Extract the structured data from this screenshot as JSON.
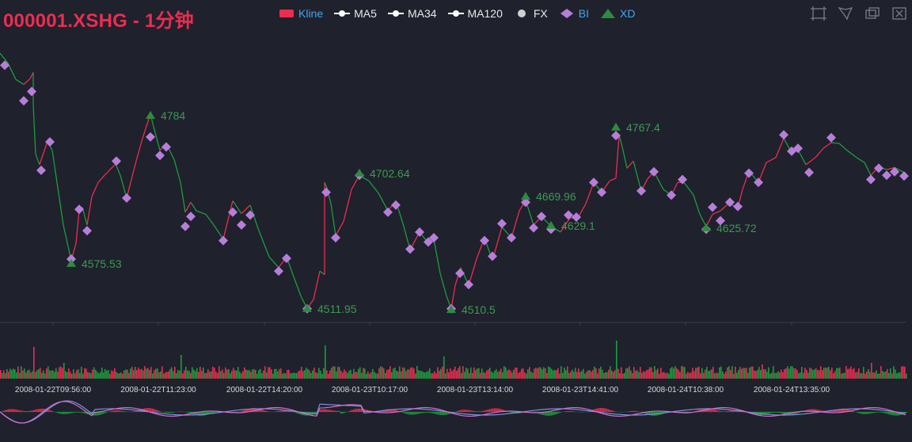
{
  "title": "000001.XSHG - 1分钟",
  "legend": [
    {
      "label": "Kline",
      "icon": "rect",
      "color": "#ec2d4f",
      "text_color": "#3ea8ef"
    },
    {
      "label": "MA5",
      "icon": "line-dot",
      "color": "#ffffff",
      "text_color": "#e8e8e8"
    },
    {
      "label": "MA34",
      "icon": "line-dot",
      "color": "#ffffff",
      "text_color": "#e8e8e8"
    },
    {
      "label": "MA120",
      "icon": "line-dot",
      "color": "#ffffff",
      "text_color": "#e8e8e8"
    },
    {
      "label": "FX",
      "icon": "circle",
      "color": "#d0d0d0",
      "text_color": "#e8e8e8"
    },
    {
      "label": "BI",
      "icon": "diamond",
      "color": "#b77ed9",
      "text_color": "#3ea8ef"
    },
    {
      "label": "XD",
      "icon": "triangle",
      "color": "#2e8b3e",
      "text_color": "#3ea8ef"
    }
  ],
  "toolbox": [
    {
      "name": "zoom-select-icon"
    },
    {
      "name": "lasso-select-icon"
    },
    {
      "name": "zoom-back-icon"
    },
    {
      "name": "clear-select-icon"
    }
  ],
  "colors": {
    "up": "#ec2d4f",
    "down": "#1f9c3c",
    "bi": "#b77ed9",
    "xd": "#2e8b3e",
    "macd_dif": "#7e8fd8",
    "macd_dea": "#d46ed0"
  },
  "chart_data": {
    "type": "line",
    "x_labels": [
      "2008-01-22T09:56:00",
      "2008-01-22T11:23:00",
      "2008-01-22T14:20:00",
      "2008-01-23T10:17:00",
      "2008-01-23T13:14:00",
      "2008-01-23T14:41:00",
      "2008-01-24T10:38:00",
      "2008-01-24T13:35:00"
    ],
    "price_range": [
      4495,
      4880
    ],
    "kline_path": [
      [
        0,
        4872
      ],
      [
        10,
        4858
      ],
      [
        20,
        4835
      ],
      [
        30,
        4828
      ],
      [
        38,
        4836
      ],
      [
        42,
        4845
      ],
      [
        42,
        4800
      ],
      [
        45,
        4730
      ],
      [
        50,
        4715
      ],
      [
        60,
        4748
      ],
      [
        66,
        4735
      ],
      [
        72,
        4690
      ],
      [
        80,
        4630
      ],
      [
        90,
        4580
      ],
      [
        96,
        4604
      ],
      [
        100,
        4650
      ],
      [
        104,
        4655
      ],
      [
        110,
        4630
      ],
      [
        116,
        4670
      ],
      [
        124,
        4690
      ],
      [
        132,
        4700
      ],
      [
        146,
        4716
      ],
      [
        152,
        4700
      ],
      [
        160,
        4668
      ],
      [
        172,
        4720
      ],
      [
        180,
        4752
      ],
      [
        190,
        4786
      ],
      [
        196,
        4760
      ],
      [
        202,
        4735
      ],
      [
        210,
        4745
      ],
      [
        220,
        4722
      ],
      [
        228,
        4690
      ],
      [
        234,
        4648
      ],
      [
        241,
        4662
      ],
      [
        248,
        4650
      ],
      [
        260,
        4645
      ],
      [
        270,
        4630
      ],
      [
        282,
        4610
      ],
      [
        294,
        4664
      ],
      [
        305,
        4646
      ],
      [
        316,
        4658
      ],
      [
        326,
        4625
      ],
      [
        340,
        4585
      ],
      [
        352,
        4570
      ],
      [
        362,
        4585
      ],
      [
        370,
        4560
      ],
      [
        380,
        4530
      ],
      [
        388,
        4512
      ],
      [
        396,
        4525
      ],
      [
        404,
        4565
      ],
      [
        410,
        4560
      ],
      [
        410,
        4690
      ],
      [
        413,
        4682
      ],
      [
        418,
        4660
      ],
      [
        424,
        4615
      ],
      [
        434,
        4635
      ],
      [
        444,
        4680
      ],
      [
        454,
        4700
      ],
      [
        466,
        4692
      ],
      [
        478,
        4675
      ],
      [
        490,
        4650
      ],
      [
        500,
        4664
      ],
      [
        510,
        4628
      ],
      [
        518,
        4595
      ],
      [
        530,
        4620
      ],
      [
        540,
        4606
      ],
      [
        548,
        4610
      ],
      [
        556,
        4562
      ],
      [
        564,
        4530
      ],
      [
        570,
        4512
      ],
      [
        575,
        4545
      ],
      [
        582,
        4570
      ],
      [
        592,
        4545
      ],
      [
        602,
        4582
      ],
      [
        612,
        4612
      ],
      [
        622,
        4580
      ],
      [
        634,
        4627
      ],
      [
        646,
        4612
      ],
      [
        656,
        4650
      ],
      [
        664,
        4665
      ],
      [
        674,
        4630
      ],
      [
        684,
        4642
      ],
      [
        696,
        4628
      ],
      [
        708,
        4620
      ],
      [
        720,
        4640
      ],
      [
        730,
        4640
      ],
      [
        740,
        4660
      ],
      [
        750,
        4690
      ],
      [
        760,
        4676
      ],
      [
        770,
        4692
      ],
      [
        778,
        4696
      ],
      [
        782,
        4757
      ],
      [
        786,
        4740
      ],
      [
        792,
        4710
      ],
      [
        800,
        4720
      ],
      [
        810,
        4678
      ],
      [
        818,
        4695
      ],
      [
        826,
        4705
      ],
      [
        838,
        4680
      ],
      [
        848,
        4672
      ],
      [
        856,
        4690
      ],
      [
        864,
        4690
      ],
      [
        876,
        4672
      ],
      [
        884,
        4645
      ],
      [
        892,
        4628
      ],
      [
        900,
        4645
      ],
      [
        910,
        4650
      ],
      [
        920,
        4660
      ],
      [
        932,
        4655
      ],
      [
        938,
        4680
      ],
      [
        946,
        4706
      ],
      [
        958,
        4690
      ],
      [
        968,
        4718
      ],
      [
        980,
        4725
      ],
      [
        990,
        4752
      ],
      [
        1000,
        4732
      ],
      [
        1008,
        4736
      ],
      [
        1018,
        4715
      ],
      [
        1030,
        4725
      ],
      [
        1040,
        4738
      ],
      [
        1050,
        4746
      ],
      [
        1060,
        4745
      ],
      [
        1070,
        4735
      ],
      [
        1082,
        4725
      ],
      [
        1092,
        4718
      ],
      [
        1100,
        4700
      ],
      [
        1110,
        4712
      ],
      [
        1120,
        4708
      ],
      [
        1130,
        4711
      ],
      [
        1144,
        4703
      ]
    ],
    "bi_points": [
      [
        6,
        4855
      ],
      [
        30,
        4805
      ],
      [
        40,
        4818
      ],
      [
        52,
        4707
      ],
      [
        63,
        4747
      ],
      [
        90,
        4582
      ],
      [
        100,
        4652
      ],
      [
        110,
        4622
      ],
      [
        147,
        4720
      ],
      [
        160,
        4668
      ],
      [
        190,
        4754
      ],
      [
        202,
        4728
      ],
      [
        210,
        4740
      ],
      [
        234,
        4628
      ],
      [
        241,
        4642
      ],
      [
        282,
        4608
      ],
      [
        294,
        4648
      ],
      [
        305,
        4630
      ],
      [
        316,
        4644
      ],
      [
        352,
        4565
      ],
      [
        362,
        4583
      ],
      [
        388,
        4512
      ],
      [
        412,
        4676
      ],
      [
        424,
        4612
      ],
      [
        454,
        4700
      ],
      [
        490,
        4648
      ],
      [
        500,
        4658
      ],
      [
        518,
        4596
      ],
      [
        530,
        4620
      ],
      [
        541,
        4606
      ],
      [
        548,
        4612
      ],
      [
        570,
        4512
      ],
      [
        581,
        4562
      ],
      [
        592,
        4546
      ],
      [
        612,
        4608
      ],
      [
        622,
        4586
      ],
      [
        634,
        4632
      ],
      [
        646,
        4612
      ],
      [
        664,
        4662
      ],
      [
        674,
        4626
      ],
      [
        684,
        4642
      ],
      [
        696,
        4624
      ],
      [
        718,
        4644
      ],
      [
        728,
        4641
      ],
      [
        750,
        4690
      ],
      [
        760,
        4676
      ],
      [
        778,
        4756
      ],
      [
        810,
        4678
      ],
      [
        826,
        4705
      ],
      [
        848,
        4672
      ],
      [
        862,
        4694
      ],
      [
        892,
        4624
      ],
      [
        900,
        4655
      ],
      [
        910,
        4636
      ],
      [
        922,
        4662
      ],
      [
        932,
        4656
      ],
      [
        946,
        4703
      ],
      [
        958,
        4690
      ],
      [
        990,
        4757
      ],
      [
        1000,
        4734
      ],
      [
        1008,
        4738
      ],
      [
        1022,
        4704
      ],
      [
        1050,
        4753
      ],
      [
        1100,
        4694
      ],
      [
        1110,
        4710
      ],
      [
        1120,
        4700
      ],
      [
        1130,
        4705
      ],
      [
        1142,
        4699
      ]
    ],
    "xd_points": [
      {
        "x": 90,
        "y": 4575.53,
        "label": "4575.53"
      },
      {
        "x": 190,
        "y": 4784,
        "label": "4784"
      },
      {
        "x": 388,
        "y": 4511.95,
        "label": "4511.95"
      },
      {
        "x": 454,
        "y": 4702.64,
        "label": "4702.64"
      },
      {
        "x": 570,
        "y": 4510.5,
        "label": "4510.5"
      },
      {
        "x": 664,
        "y": 4669.96,
        "label": "4669.96"
      },
      {
        "x": 696,
        "y": 4629.1,
        "label": "4629.1"
      },
      {
        "x": 778,
        "y": 4767.4,
        "label": "4767.4"
      },
      {
        "x": 892,
        "y": 4625.72,
        "label": "4625.72"
      }
    ],
    "volume_spikes": [
      [
        42,
        40
      ],
      [
        80,
        20
      ],
      [
        228,
        30
      ],
      [
        410,
        42
      ],
      [
        560,
        28
      ],
      [
        778,
        48
      ],
      [
        962,
        18
      ],
      [
        1100,
        20
      ]
    ]
  }
}
